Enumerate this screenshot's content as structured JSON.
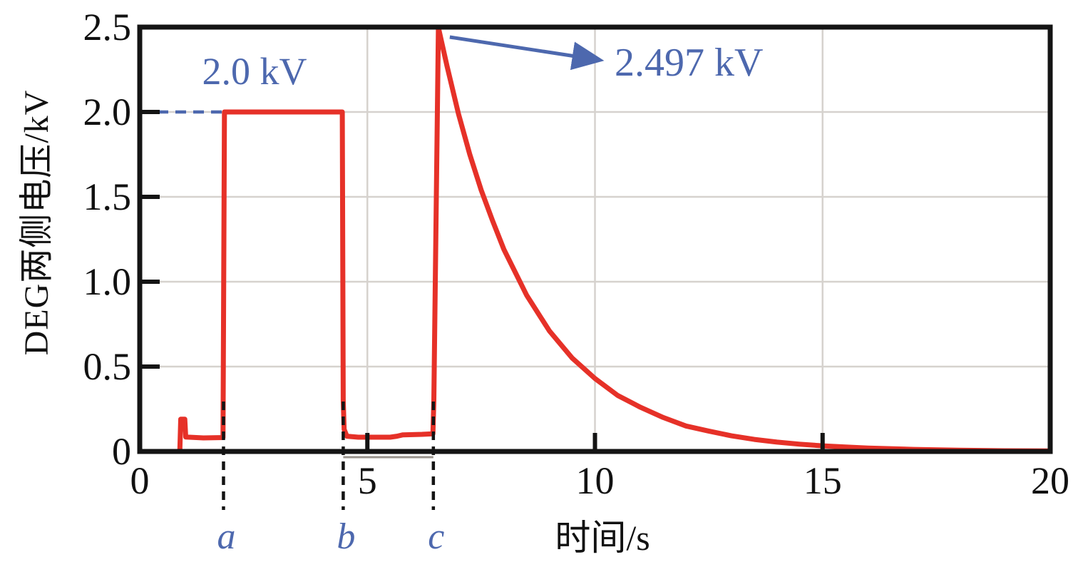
{
  "chart_data": {
    "type": "line",
    "title": "",
    "xlabel": "时间/s",
    "ylabel": "DEG两侧电压/kV",
    "xlim": [
      0,
      20
    ],
    "ylim": [
      0,
      2.5
    ],
    "x_ticks": [
      0,
      5,
      10,
      15,
      20
    ],
    "x_tick_labels": [
      "0",
      "5",
      "10",
      "15",
      "20"
    ],
    "y_ticks": [
      0,
      0.5,
      1.0,
      1.5,
      2.0,
      2.5
    ],
    "y_tick_labels": [
      "0",
      "0.5",
      "1.0",
      "1.5",
      "2.0",
      "2.5"
    ],
    "grid": {
      "on": true,
      "x_values": [
        5,
        10,
        15
      ],
      "y_values": [
        0.5,
        1.0,
        1.5,
        2.0
      ],
      "color": "#d6d2ce"
    },
    "legend": {
      "visible": false
    },
    "series": [
      {
        "name": "DEG voltage",
        "color": "#e63128",
        "points": [
          [
            0.88,
            0
          ],
          [
            0.9,
            0.19
          ],
          [
            0.99,
            0.19
          ],
          [
            1.01,
            0.085
          ],
          [
            1.4,
            0.08
          ],
          [
            1.83,
            0.082
          ],
          [
            1.86,
            2.0
          ],
          [
            4.45,
            2.0
          ],
          [
            4.47,
            0.3
          ],
          [
            4.49,
            0.13
          ],
          [
            4.55,
            0.09
          ],
          [
            4.8,
            0.084
          ],
          [
            5.5,
            0.084
          ],
          [
            5.65,
            0.09
          ],
          [
            5.78,
            0.098
          ],
          [
            6.2,
            0.101
          ],
          [
            6.44,
            0.104
          ],
          [
            6.46,
            0.3
          ],
          [
            6.56,
            2.497
          ],
          [
            6.75,
            2.27
          ],
          [
            7.0,
            1.99
          ],
          [
            7.25,
            1.75
          ],
          [
            7.5,
            1.54
          ],
          [
            7.75,
            1.36
          ],
          [
            8.0,
            1.19
          ],
          [
            8.5,
            0.92
          ],
          [
            9.0,
            0.71
          ],
          [
            9.5,
            0.55
          ],
          [
            10.0,
            0.43
          ],
          [
            10.5,
            0.33
          ],
          [
            11.0,
            0.26
          ],
          [
            11.5,
            0.2
          ],
          [
            12.0,
            0.15
          ],
          [
            12.5,
            0.12
          ],
          [
            13.0,
            0.092
          ],
          [
            13.5,
            0.071
          ],
          [
            14.0,
            0.055
          ],
          [
            14.5,
            0.043
          ],
          [
            15.0,
            0.033
          ],
          [
            15.5,
            0.026
          ],
          [
            16.0,
            0.02
          ],
          [
            17.0,
            0.012
          ],
          [
            18.0,
            0.007
          ],
          [
            19.0,
            0.004
          ],
          [
            20.0,
            0.003
          ]
        ]
      }
    ],
    "annotations": {
      "plateau_label": {
        "text": "2.0 kV",
        "value": 2.0
      },
      "peak_label": {
        "text": "2.497 kV",
        "value": 2.497,
        "peak_time": 6.56
      },
      "dashed_level_line": {
        "value": 2.0,
        "from_t": 0,
        "to_t": 4.46,
        "color": "#4d68ae"
      },
      "markers": [
        {
          "label": "a",
          "t": 1.84
        },
        {
          "label": "b",
          "t": 4.47
        },
        {
          "label": "c",
          "t": 6.45
        }
      ],
      "interval_underline": {
        "from_t": 4.47,
        "to_t": 6.45
      }
    }
  },
  "colors": {
    "curve": "#e63128",
    "annotation_blue": "#4d68ae",
    "frame": "#141414",
    "grid": "#d6d2ce",
    "underline_gray": "#9a948e",
    "background": "#ffffff"
  }
}
